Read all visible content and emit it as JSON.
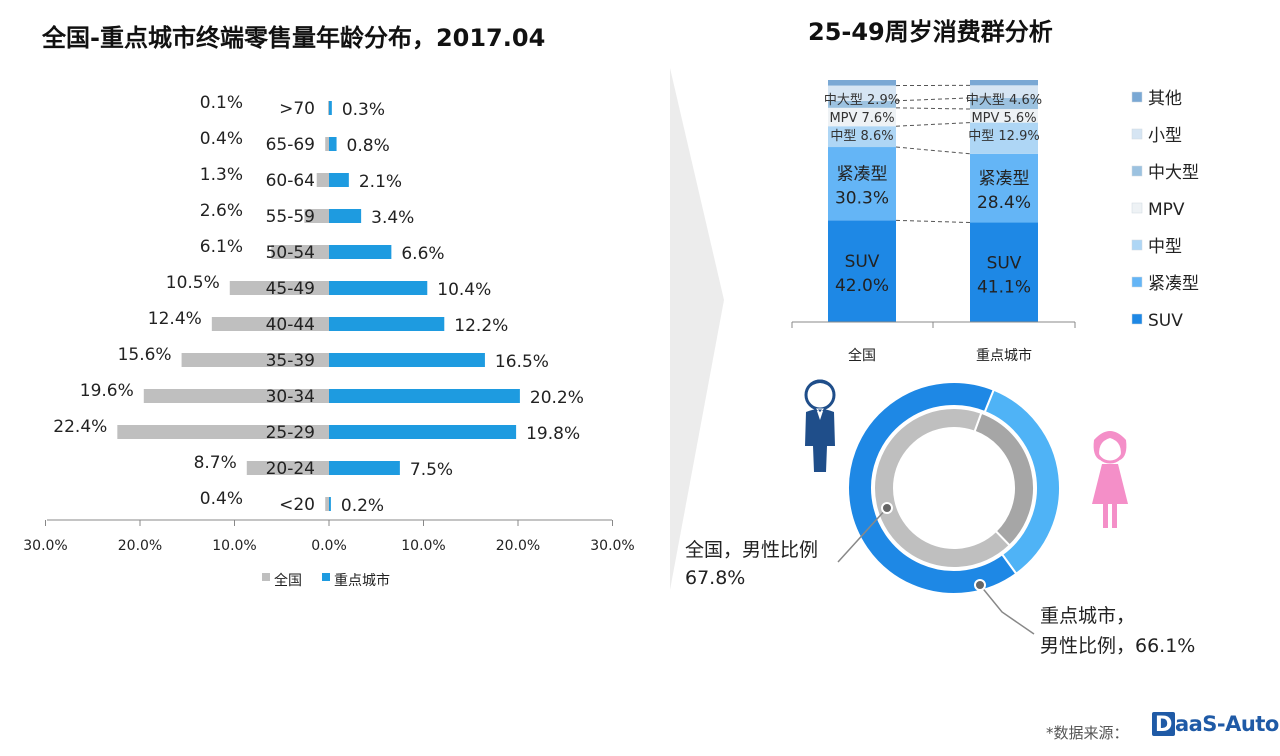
{
  "title_left": "全国-重点城市终端零售量年龄分布，2017.04",
  "title_right": "25-49周岁消费群分析",
  "chart_data": [
    {
      "type": "bar",
      "orientation": "horizontal-diverging",
      "title": "全国-重点城市终端零售量年龄分布，2017.04",
      "categories": [
        ">70",
        "65-69",
        "60-64",
        "55-59",
        "50-54",
        "45-49",
        "40-44",
        "35-39",
        "30-34",
        "25-29",
        "20-24",
        "<20"
      ],
      "series": [
        {
          "name": "全国",
          "color": "#bfbfbf",
          "side": "left",
          "values": [
            0.1,
            0.4,
            1.3,
            2.6,
            6.1,
            10.5,
            12.4,
            15.6,
            19.6,
            22.4,
            8.7,
            0.4
          ]
        },
        {
          "name": "重点城市",
          "color": "#1e9be0",
          "side": "right",
          "values": [
            0.3,
            0.8,
            2.1,
            3.4,
            6.6,
            10.4,
            12.2,
            16.5,
            20.2,
            19.8,
            7.5,
            0.2
          ]
        }
      ],
      "xticks": [
        "30.0%",
        "20.0%",
        "10.0%",
        "0.0%",
        "10.0%",
        "20.0%",
        "30.0%"
      ],
      "xlim": [
        -30,
        30
      ],
      "legend": [
        "全国",
        "重点城市"
      ]
    },
    {
      "type": "bar",
      "orientation": "stacked-100",
      "title": "25-49周岁消费群分析",
      "categories": [
        "全国",
        "重点城市"
      ],
      "series": [
        {
          "name": "SUV",
          "color": "#1e88e5",
          "values": [
            42.0,
            41.1
          ],
          "label_text": [
            "SUV",
            "SUV"
          ],
          "value_text": [
            "42.0%",
            "41.1%"
          ]
        },
        {
          "name": "紧凑型",
          "color": "#64b5f6",
          "values": [
            30.3,
            28.4
          ],
          "label_text": [
            "紧凑型",
            "紧凑型"
          ],
          "value_text": [
            "30.3%",
            "28.4%"
          ]
        },
        {
          "name": "中型",
          "color": "#aed6f5",
          "values": [
            8.6,
            12.9
          ],
          "label_text": [
            "中型 8.6%",
            "中型 12.9%"
          ]
        },
        {
          "name": "MPV",
          "color": "#eef2f5",
          "values": [
            7.6,
            5.6
          ],
          "label_text": [
            "MPV 7.6%",
            "MPV 5.6%"
          ]
        },
        {
          "name": "中大型",
          "color": "#9cc2e0",
          "values": [
            2.9,
            4.6
          ],
          "label_text": [
            "中大型 2.9%",
            "中大型 4.6%"
          ]
        },
        {
          "name": "小型",
          "color": "#d6e5f3",
          "values": [
            6.3,
            5.2
          ]
        },
        {
          "name": "其他",
          "color": "#7aa8d4",
          "values": [
            2.3,
            2.2
          ]
        }
      ],
      "legend": [
        "其他",
        "小型",
        "中大型",
        "MPV",
        "中型",
        "紧凑型",
        "SUV"
      ],
      "legend_colors": [
        "#7aa8d4",
        "#d6e5f3",
        "#9cc2e0",
        "#eef2f5",
        "#aed6f5",
        "#64b5f6",
        "#1e88e5"
      ]
    },
    {
      "type": "pie",
      "variant": "double-donut",
      "series": [
        {
          "name": "全国",
          "ring": "inner",
          "male": 67.8,
          "colors": [
            "#bfbfbf",
            "#a6a6a6"
          ],
          "label": "全国，男性比例",
          "value_label": "67.8%"
        },
        {
          "name": "重点城市",
          "ring": "outer",
          "male": 66.1,
          "colors": [
            "#1e88e5",
            "#4fb3f6"
          ],
          "label": "重点城市，",
          "label2": "男性比例，66.1%"
        }
      ]
    }
  ],
  "icons": {
    "male": "male-figure-icon",
    "female": "female-figure-icon",
    "male_color": "#1f4e8a",
    "female_color": "#f48fc8"
  },
  "source_label": "*数据来源：",
  "logo": {
    "d": "D",
    "rest": "aaS-Auto"
  }
}
